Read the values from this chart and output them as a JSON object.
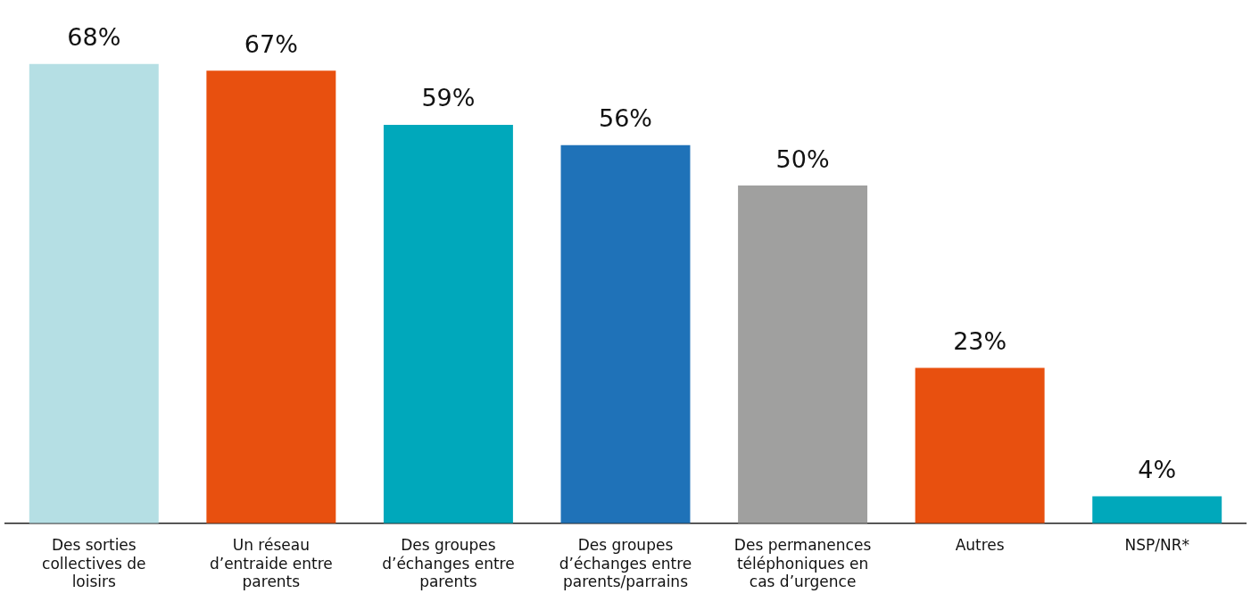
{
  "chart_data": {
    "type": "bar",
    "categories": [
      "Des sorties collectives de loisirs",
      "Un réseau d’entraide entre parents",
      "Des groupes d’échanges entre parents",
      "Des groupes d’échanges entre parents/parrains",
      "Des permanences téléphoniques en cas d’urgence",
      "Autres",
      "NSP/NR*"
    ],
    "values": [
      68,
      67,
      59,
      56,
      50,
      23,
      4
    ],
    "colors": [
      "#b5dfe4",
      "#e8500f",
      "#00a8bb",
      "#1f72b8",
      "#a0a09f",
      "#e8500f",
      "#00a8bb"
    ],
    "value_labels": [
      "68%",
      "67%",
      "59%",
      "56%",
      "50%",
      "23%",
      "4%"
    ],
    "grid": false,
    "legend": false
  }
}
